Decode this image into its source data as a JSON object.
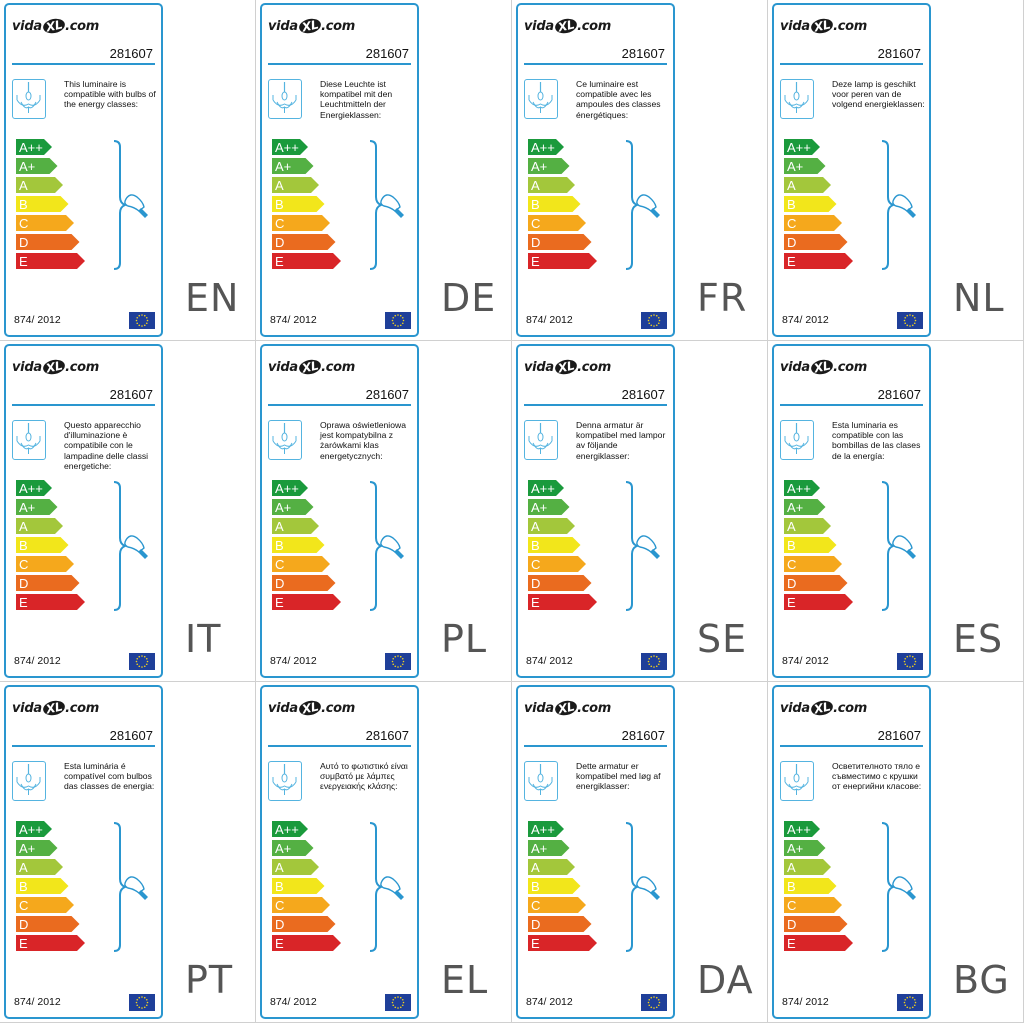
{
  "brand": {
    "logo_prefix": "vida",
    "logo_mark": "XL",
    "logo_suffix": ".com"
  },
  "model_number": "281607",
  "regulation": "874/ 2012",
  "energy_classes": [
    "A++",
    "A+",
    "A",
    "B",
    "C",
    "D",
    "E"
  ],
  "energy_class_colors": [
    "#1a9a3c",
    "#54b043",
    "#a3c73b",
    "#f2e61b",
    "#f5a81c",
    "#ea6b1f",
    "#d92528"
  ],
  "accent_color": "#2a96cf",
  "icons": {
    "lamp": "chandelier-icon",
    "bulb": "light-bulb-icon",
    "flag": "eu-flag-icon"
  },
  "labels": [
    {
      "lang": "EN",
      "text": "This luminaire is compatible with bulbs of the energy classes:"
    },
    {
      "lang": "DE",
      "text": "Diese Leuchte ist kompatibel mit den Leuchtmitteln der Energieklassen:"
    },
    {
      "lang": "FR",
      "text": "Ce luminaire est compatible avec les ampoules des classes énergétiques:"
    },
    {
      "lang": "NL",
      "text": "Deze lamp is geschikt voor peren van de volgend energieklassen:"
    },
    {
      "lang": "IT",
      "text": "Questo apparecchio d'illuminazione è compatibile con le lampadine delle classi energetiche:"
    },
    {
      "lang": "PL",
      "text": "Oprawa oświetleniowa jest kompatybilna z żarówkami klas energetycznych:"
    },
    {
      "lang": "SE",
      "text": "Denna armatur är kompatibel med lampor av följande energiklasser:"
    },
    {
      "lang": "ES",
      "text": "Esta luminaria es compatible con las bombillas de las clases de la energía:"
    },
    {
      "lang": "PT",
      "text": "Esta luminária é compatível com bulbos das classes de energia:"
    },
    {
      "lang": "EL",
      "text": "Αυτό το φωτιστικό είναι συμβατό με λάμπες ενεργειακής κλάσης:"
    },
    {
      "lang": "DA",
      "text": "Dette armatur er kompatibel med løg af energiklasser:"
    },
    {
      "lang": "BG",
      "text": "Осветителното тяло е съвместимо с крушки от енергийни класове:"
    }
  ]
}
